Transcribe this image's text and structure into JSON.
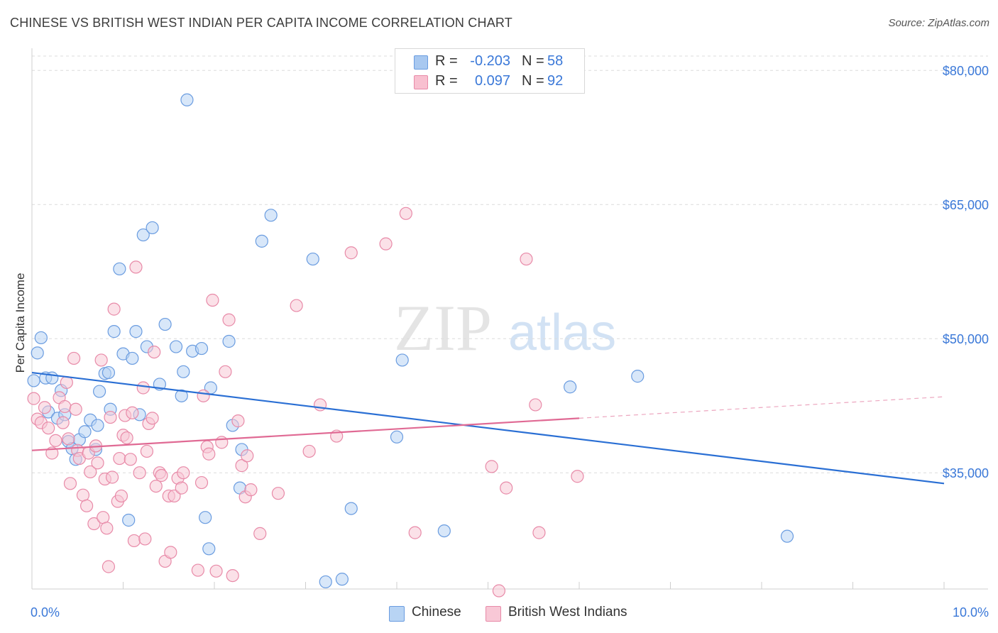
{
  "title": "CHINESE VS BRITISH WEST INDIAN PER CAPITA INCOME CORRELATION CHART",
  "source": "Source: ZipAtlas.com",
  "watermark": {
    "zip": "ZIP",
    "atlas": "atlas"
  },
  "stats": [
    {
      "r_label": "R =",
      "r_value": "-0.203",
      "n_label": "N =",
      "n_value": "58",
      "color": "#a8c8f0",
      "border": "#6a9ce0"
    },
    {
      "r_label": "R =",
      "r_value": "0.097",
      "n_label": "N =",
      "n_value": "92",
      "color": "#f8c0d0",
      "border": "#e88aa8"
    }
  ],
  "legend": [
    {
      "label": "Chinese",
      "color": "#b8d4f4",
      "border": "#6a9ce0"
    },
    {
      "label": "British West Indians",
      "color": "#f8c8d6",
      "border": "#e88aa8"
    }
  ],
  "chart_data": {
    "type": "scatter",
    "xlabel": "",
    "ylabel": "Per Capita Income",
    "xlim": [
      0,
      10
    ],
    "ylim": [
      22000,
      82000
    ],
    "x_tick_labels": [
      "0.0%",
      "10.0%"
    ],
    "y_ticks": [
      {
        "value": 35000,
        "label": "$35,000"
      },
      {
        "value": 50000,
        "label": "$50,000"
      },
      {
        "value": 65000,
        "label": "$65,000"
      },
      {
        "value": 80000,
        "label": "$80,000"
      }
    ],
    "grid": true,
    "series": [
      {
        "name": "Chinese",
        "color": "#6a9ce0",
        "fill": "#b8d4f4",
        "trend": {
          "x0": 0,
          "y0": 46200,
          "x1": 10,
          "y1": 33800,
          "solid_to": 10
        },
        "points": [
          [
            0.02,
            45300
          ],
          [
            0.06,
            48400
          ],
          [
            0.1,
            50100
          ],
          [
            0.15,
            45600
          ],
          [
            0.18,
            41800
          ],
          [
            0.22,
            45600
          ],
          [
            0.28,
            41100
          ],
          [
            0.32,
            44200
          ],
          [
            0.36,
            41500
          ],
          [
            0.4,
            38500
          ],
          [
            0.44,
            37700
          ],
          [
            0.48,
            36500
          ],
          [
            0.52,
            38700
          ],
          [
            0.58,
            39600
          ],
          [
            0.64,
            40900
          ],
          [
            0.7,
            37600
          ],
          [
            0.72,
            40300
          ],
          [
            0.74,
            44100
          ],
          [
            0.8,
            46100
          ],
          [
            0.84,
            46200
          ],
          [
            0.86,
            42100
          ],
          [
            0.9,
            50800
          ],
          [
            0.96,
            57800
          ],
          [
            1.0,
            48300
          ],
          [
            1.06,
            29700
          ],
          [
            1.1,
            47800
          ],
          [
            1.14,
            50800
          ],
          [
            1.18,
            41500
          ],
          [
            1.22,
            61600
          ],
          [
            1.26,
            49100
          ],
          [
            1.32,
            62400
          ],
          [
            1.4,
            44900
          ],
          [
            1.46,
            51600
          ],
          [
            1.58,
            49100
          ],
          [
            1.64,
            43600
          ],
          [
            1.66,
            46300
          ],
          [
            1.7,
            76700
          ],
          [
            1.76,
            48600
          ],
          [
            1.86,
            48900
          ],
          [
            1.9,
            30000
          ],
          [
            1.94,
            26500
          ],
          [
            1.96,
            44500
          ],
          [
            2.16,
            49700
          ],
          [
            2.2,
            40300
          ],
          [
            2.28,
            33300
          ],
          [
            2.3,
            37600
          ],
          [
            2.52,
            60900
          ],
          [
            2.62,
            63800
          ],
          [
            3.08,
            58900
          ],
          [
            3.22,
            22800
          ],
          [
            3.4,
            23100
          ],
          [
            3.5,
            31000
          ],
          [
            4.06,
            47600
          ],
          [
            4.0,
            39000
          ],
          [
            4.52,
            28500
          ],
          [
            5.9,
            44600
          ],
          [
            6.64,
            45800
          ],
          [
            8.28,
            27900
          ]
        ]
      },
      {
        "name": "British West Indians",
        "color": "#e88aa8",
        "fill": "#f8c8d6",
        "trend": {
          "x0": 0,
          "y0": 37500,
          "x1": 10,
          "y1": 43500,
          "solid_to": 6.0
        },
        "points": [
          [
            0.02,
            43300
          ],
          [
            0.06,
            41000
          ],
          [
            0.1,
            40600
          ],
          [
            0.14,
            42300
          ],
          [
            0.18,
            40000
          ],
          [
            0.22,
            37200
          ],
          [
            0.26,
            38600
          ],
          [
            0.3,
            43400
          ],
          [
            0.34,
            40600
          ],
          [
            0.36,
            42400
          ],
          [
            0.38,
            45100
          ],
          [
            0.4,
            38800
          ],
          [
            0.42,
            33800
          ],
          [
            0.46,
            47800
          ],
          [
            0.48,
            42100
          ],
          [
            0.5,
            37500
          ],
          [
            0.52,
            36600
          ],
          [
            0.56,
            32500
          ],
          [
            0.6,
            31300
          ],
          [
            0.62,
            37200
          ],
          [
            0.64,
            35100
          ],
          [
            0.68,
            29300
          ],
          [
            0.7,
            38000
          ],
          [
            0.72,
            36100
          ],
          [
            0.76,
            47600
          ],
          [
            0.78,
            30000
          ],
          [
            0.8,
            34300
          ],
          [
            0.82,
            28800
          ],
          [
            0.84,
            24500
          ],
          [
            0.86,
            41200
          ],
          [
            0.88,
            34500
          ],
          [
            0.9,
            53300
          ],
          [
            0.94,
            31800
          ],
          [
            0.96,
            36600
          ],
          [
            0.98,
            32400
          ],
          [
            1.0,
            39200
          ],
          [
            1.02,
            41400
          ],
          [
            1.04,
            38900
          ],
          [
            1.08,
            36500
          ],
          [
            1.1,
            41700
          ],
          [
            1.12,
            27400
          ],
          [
            1.14,
            58000
          ],
          [
            1.18,
            35000
          ],
          [
            1.22,
            44500
          ],
          [
            1.24,
            27600
          ],
          [
            1.26,
            37400
          ],
          [
            1.28,
            40500
          ],
          [
            1.32,
            41100
          ],
          [
            1.34,
            48500
          ],
          [
            1.36,
            33500
          ],
          [
            1.4,
            35000
          ],
          [
            1.42,
            34700
          ],
          [
            1.46,
            25100
          ],
          [
            1.5,
            32400
          ],
          [
            1.52,
            26100
          ],
          [
            1.56,
            32400
          ],
          [
            1.6,
            34400
          ],
          [
            1.64,
            33300
          ],
          [
            1.66,
            35000
          ],
          [
            1.82,
            24100
          ],
          [
            1.86,
            33900
          ],
          [
            1.88,
            43600
          ],
          [
            1.92,
            37900
          ],
          [
            1.94,
            37100
          ],
          [
            1.98,
            54300
          ],
          [
            2.02,
            24000
          ],
          [
            2.08,
            38400
          ],
          [
            2.12,
            46300
          ],
          [
            2.16,
            52100
          ],
          [
            2.2,
            23500
          ],
          [
            2.26,
            40800
          ],
          [
            2.3,
            35800
          ],
          [
            2.34,
            32300
          ],
          [
            2.36,
            36900
          ],
          [
            2.4,
            33100
          ],
          [
            2.5,
            28200
          ],
          [
            2.7,
            32700
          ],
          [
            2.9,
            53700
          ],
          [
            3.04,
            37400
          ],
          [
            3.16,
            42600
          ],
          [
            3.34,
            39100
          ],
          [
            3.5,
            59600
          ],
          [
            3.88,
            60600
          ],
          [
            4.1,
            64000
          ],
          [
            4.2,
            28300
          ],
          [
            5.04,
            35700
          ],
          [
            5.12,
            21800
          ],
          [
            5.2,
            33300
          ],
          [
            5.42,
            58900
          ],
          [
            5.52,
            42600
          ],
          [
            5.56,
            28300
          ],
          [
            5.98,
            34600
          ]
        ]
      }
    ]
  }
}
